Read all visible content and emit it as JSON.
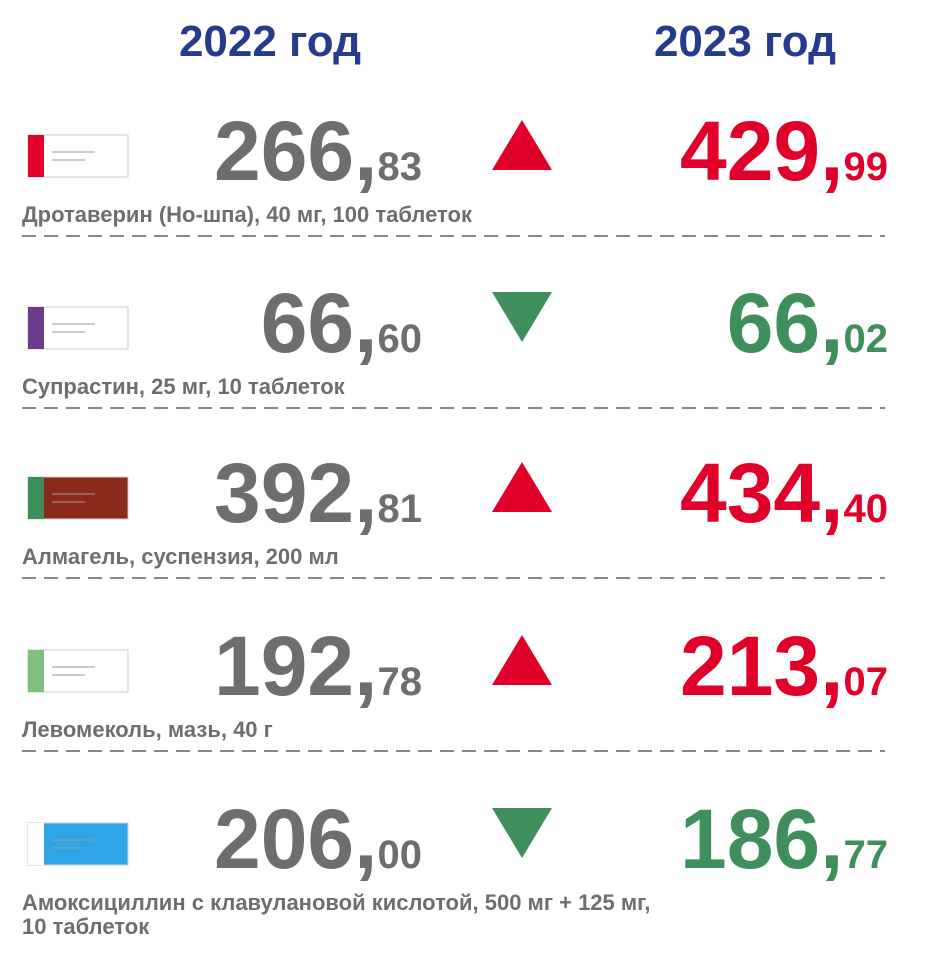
{
  "header": {
    "year_left": "2022 год",
    "year_right": "2023 год"
  },
  "items": [
    {
      "name": [
        "Дротаверин (Но-шпа), 40 мг, 100 таблеток"
      ],
      "price_2022": {
        "main": "266,",
        "cents": "83"
      },
      "price_2023": {
        "main": "429,",
        "cents": "99"
      },
      "trend": "up"
    },
    {
      "name": [
        "Супрастин, 25 мг, 10 таблеток"
      ],
      "price_2022": {
        "main": "66,",
        "cents": "60"
      },
      "price_2023": {
        "main": "66,",
        "cents": "02"
      },
      "trend": "down"
    },
    {
      "name": [
        "Алмагель, суспензия, 200 мл"
      ],
      "price_2022": {
        "main": "392,",
        "cents": "81"
      },
      "price_2023": {
        "main": "434,",
        "cents": "40"
      },
      "trend": "up"
    },
    {
      "name": [
        "Левомеколь, мазь, 40 г"
      ],
      "price_2022": {
        "main": "192,",
        "cents": "78"
      },
      "price_2023": {
        "main": "213,",
        "cents": "07"
      },
      "trend": "up"
    },
    {
      "name": [
        "Амоксициллин с клавулановой кислотой, 500 мг + 125 мг,",
        "10 таблеток"
      ],
      "price_2022": {
        "main": "206,",
        "cents": "00"
      },
      "price_2023": {
        "main": "186,",
        "cents": "77"
      },
      "trend": "down"
    }
  ],
  "colors": {
    "up": "#e0002a",
    "down": "#3f8f5c",
    "old": "#6e6e6e",
    "header": "#263a8e"
  }
}
